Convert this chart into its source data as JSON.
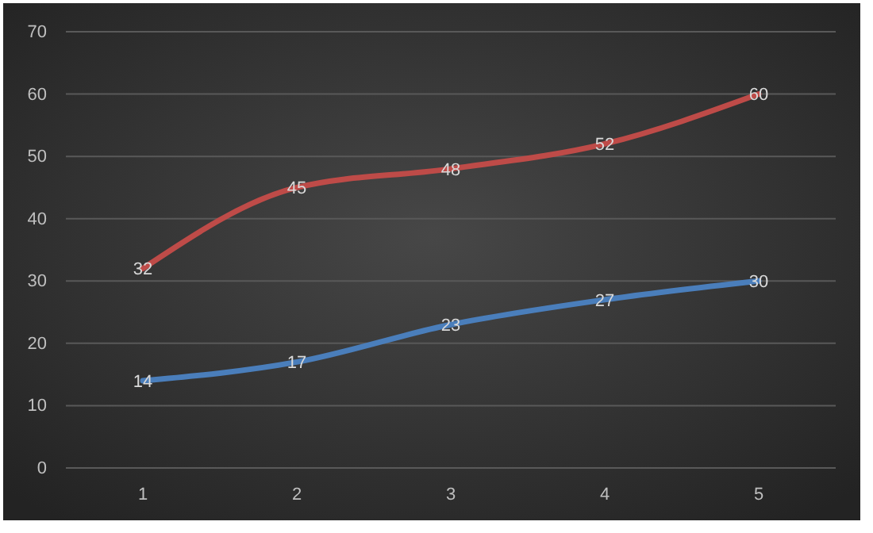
{
  "chart_data": {
    "type": "line",
    "categories": [
      "1",
      "2",
      "3",
      "4",
      "5"
    ],
    "series": [
      {
        "color": "#be4b48",
        "values": [
          32,
          45,
          48,
          52,
          60
        ]
      },
      {
        "color": "#4a7ebb",
        "values": [
          14,
          17,
          23,
          27,
          30
        ]
      }
    ],
    "ylim": [
      0,
      70
    ],
    "yticks": [
      0,
      10,
      20,
      30,
      40,
      50,
      60,
      70
    ],
    "grid": "y",
    "data_labels": true,
    "marker": "none",
    "line_style": "solid"
  }
}
